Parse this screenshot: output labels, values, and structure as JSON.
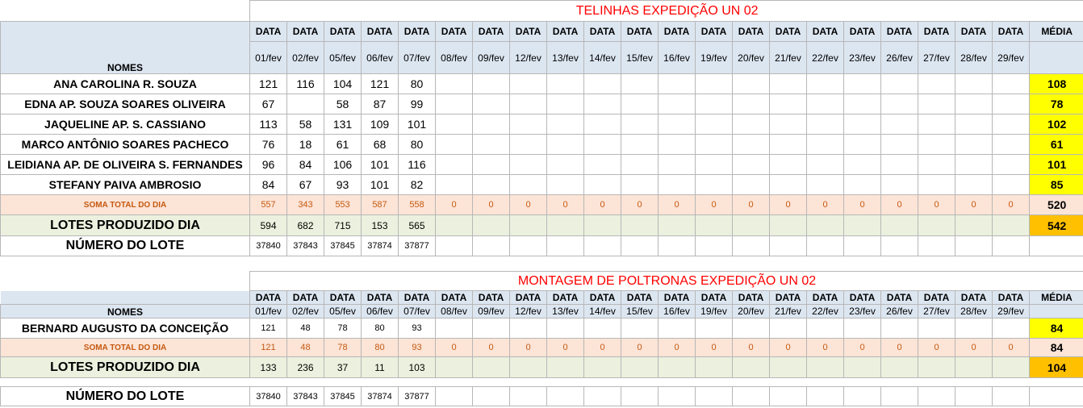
{
  "section1": {
    "title": "TELINHAS EXPEDIÇÃO UN 02",
    "header_label": "DATA",
    "media_label": "MÉDIA",
    "nomes_label": "NOMES",
    "dates": [
      "01/fev",
      "02/fev",
      "05/fev",
      "06/fev",
      "07/fev",
      "08/fev",
      "09/fev",
      "12/fev",
      "13/fev",
      "14/fev",
      "15/fev",
      "16/fev",
      "19/fev",
      "20/fev",
      "21/fev",
      "22/fev",
      "23/fev",
      "26/fev",
      "27/fev",
      "28/fev",
      "29/fev"
    ],
    "rows": [
      {
        "name": "ANA CAROLINA R. SOUZA",
        "values": [
          "121",
          "116",
          "104",
          "121",
          "80"
        ],
        "media": "108"
      },
      {
        "name": "EDNA AP. SOUZA SOARES OLIVEIRA",
        "values": [
          "67",
          "",
          "58",
          "87",
          "99"
        ],
        "media": "78"
      },
      {
        "name": "JAQUELINE AP.  S. CASSIANO",
        "values": [
          "113",
          "58",
          "131",
          "109",
          "101"
        ],
        "media": "102"
      },
      {
        "name": "MARCO ANTÔNIO SOARES PACHECO",
        "values": [
          "76",
          "18",
          "61",
          "68",
          "80"
        ],
        "media": "61"
      },
      {
        "name": "LEIDIANA AP. DE OLIVEIRA S. FERNANDES",
        "values": [
          "96",
          "84",
          "106",
          "101",
          "116"
        ],
        "media": "101"
      },
      {
        "name": "STEFANY PAIVA AMBROSIO",
        "values": [
          "84",
          "67",
          "93",
          "101",
          "82"
        ],
        "media": "85"
      }
    ],
    "soma": {
      "label": "SOMA TOTAL DO DIA",
      "values": [
        "557",
        "343",
        "553",
        "587",
        "558",
        "0",
        "0",
        "0",
        "0",
        "0",
        "0",
        "0",
        "0",
        "0",
        "0",
        "0",
        "0",
        "0",
        "0",
        "0",
        "0"
      ],
      "media": "520"
    },
    "lotes": {
      "label": "LOTES PRODUZIDO DIA",
      "values": [
        "594",
        "682",
        "715",
        "153",
        "565"
      ],
      "media": "542"
    },
    "numero": {
      "label": "NÚMERO DO LOTE",
      "values": [
        "37840",
        "37843",
        "37845",
        "37874",
        "37877"
      ]
    }
  },
  "section2": {
    "title": "MONTAGEM DE POLTRONAS EXPEDIÇÃO UN 02",
    "header_label": "DATA",
    "media_label": "MÉDIA",
    "nomes_label": "NOMES",
    "dates": [
      "01/fev",
      "02/fev",
      "05/fev",
      "06/fev",
      "07/fev",
      "08/fev",
      "09/fev",
      "12/fev",
      "13/fev",
      "14/fev",
      "15/fev",
      "16/fev",
      "19/fev",
      "20/fev",
      "21/fev",
      "22/fev",
      "23/fev",
      "26/fev",
      "27/fev",
      "28/fev",
      "29/fev"
    ],
    "rows": [
      {
        "name": "BERNARD AUGUSTO DA CONCEIÇÃO",
        "values": [
          "121",
          "48",
          "78",
          "80",
          "93"
        ],
        "media": "84"
      }
    ],
    "soma": {
      "label": "SOMA TOTAL DO DIA",
      "values": [
        "121",
        "48",
        "78",
        "80",
        "93",
        "0",
        "0",
        "0",
        "0",
        "0",
        "0",
        "0",
        "0",
        "0",
        "0",
        "0",
        "0",
        "0",
        "0",
        "0",
        "0"
      ],
      "media": "84"
    },
    "lotes": {
      "label": "LOTES PRODUZIDO DIA",
      "values": [
        "133",
        "236",
        "37",
        "11",
        "103"
      ],
      "media": "104"
    },
    "numero": {
      "label": "NÚMERO DO LOTE",
      "values": [
        "37840",
        "37843",
        "37845",
        "37874",
        "37877"
      ]
    }
  },
  "colors": {
    "header_blue": "#dce6f1",
    "media_yellow": "#ffff00",
    "media_orange": "#ffc000",
    "soma_bg": "#fce4d6",
    "lotes_bg": "#ebf1de",
    "title_red": "#ff0000"
  }
}
